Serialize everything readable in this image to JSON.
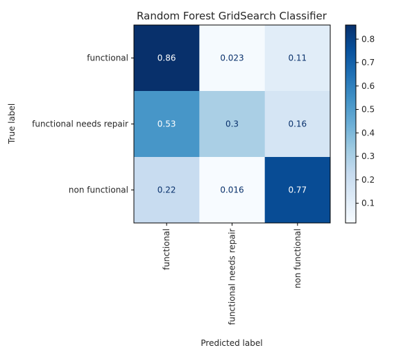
{
  "chart_data": {
    "type": "heatmap",
    "title": "Random Forest GridSearch Classifier",
    "xlabel": "Predicted label",
    "ylabel": "True label",
    "x_categories": [
      "functional",
      "functional needs repair",
      "non functional"
    ],
    "y_categories": [
      "functional",
      "functional needs repair",
      "non functional"
    ],
    "values": [
      [
        0.86,
        0.023,
        0.11
      ],
      [
        0.53,
        0.3,
        0.16
      ],
      [
        0.22,
        0.016,
        0.77
      ]
    ],
    "value_labels": [
      [
        "0.86",
        "0.023",
        "0.11"
      ],
      [
        "0.53",
        "0.3",
        "0.16"
      ],
      [
        "0.22",
        "0.016",
        "0.77"
      ]
    ],
    "colormap": "Blues",
    "colorbar": {
      "min": 0.016,
      "max": 0.86,
      "ticks": [
        0.1,
        0.2,
        0.3,
        0.4,
        0.5,
        0.6,
        0.7,
        0.8
      ],
      "tick_labels": [
        "0.1",
        "0.2",
        "0.3",
        "0.4",
        "0.5",
        "0.6",
        "0.7",
        "0.8"
      ]
    }
  }
}
